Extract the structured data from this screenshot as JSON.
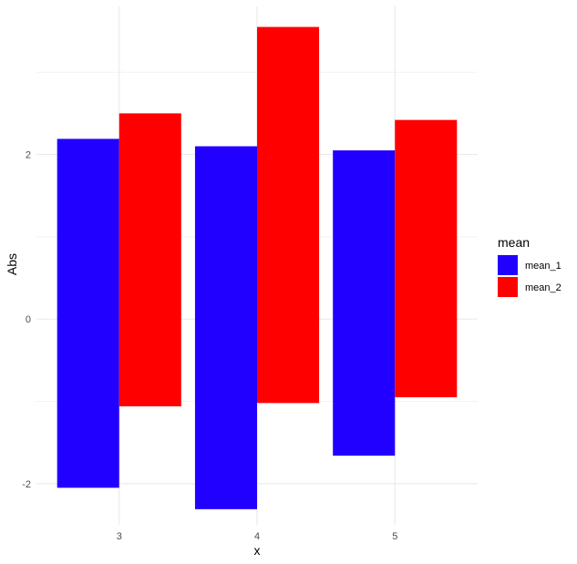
{
  "chart_data": {
    "type": "bar",
    "subtype": "floating-range-dodged",
    "xlabel": "x",
    "ylabel": "Abs",
    "categories": [
      "3",
      "4",
      "5"
    ],
    "yticks": [
      -2,
      0,
      2
    ],
    "ylim": [
      -2.5,
      3.8
    ],
    "grid": true,
    "legend": {
      "title": "mean",
      "placement": "right"
    },
    "series": [
      {
        "name": "mean_1",
        "color": "#2200ff",
        "ranges": [
          [
            -2.05,
            2.19
          ],
          [
            -2.31,
            2.1
          ],
          [
            -1.66,
            2.05
          ]
        ]
      },
      {
        "name": "mean_2",
        "color": "#ff0000",
        "ranges": [
          [
            -1.06,
            2.5
          ],
          [
            -1.02,
            3.55
          ],
          [
            -0.95,
            2.42
          ]
        ]
      }
    ]
  }
}
